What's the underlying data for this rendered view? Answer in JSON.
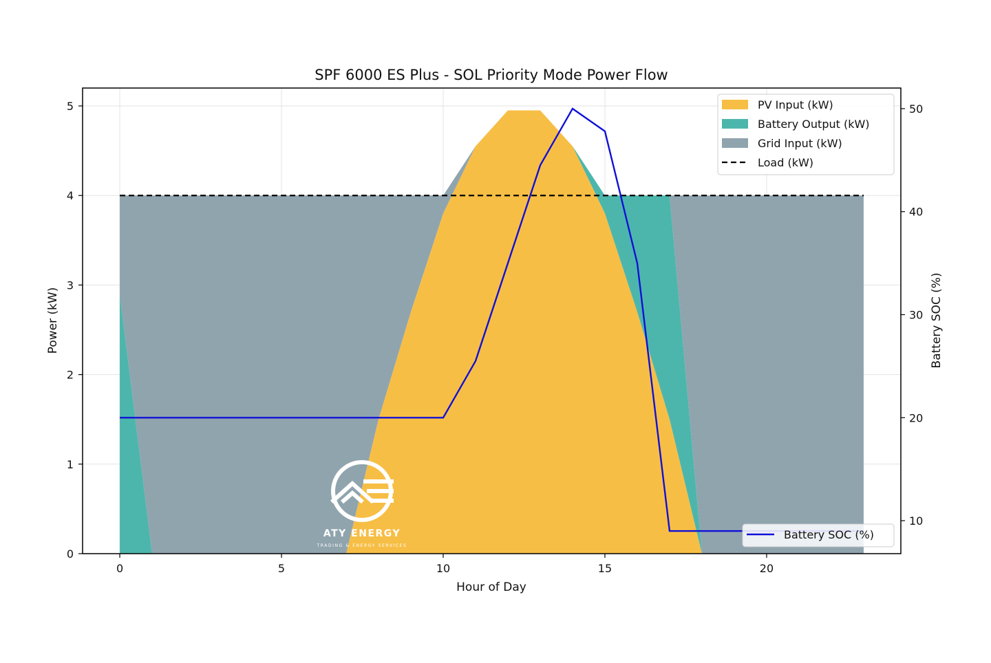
{
  "chart_data": {
    "type": "area",
    "title": "SPF 6000 ES Plus - SOL Priority Mode Power Flow",
    "xlabel": "Hour of Day",
    "ylabel": "Power (kW)",
    "y2label": "Battery SOC (%)",
    "xlim": [
      -1.15,
      24.15
    ],
    "ylim": [
      0,
      5.2
    ],
    "y2lim": [
      6.8,
      52.0
    ],
    "xticks": [
      0,
      5,
      10,
      15,
      20
    ],
    "yticks": [
      0,
      1,
      2,
      3,
      4,
      5
    ],
    "y2ticks": [
      10,
      20,
      30,
      40,
      50
    ],
    "grid": true,
    "legend_placement": "top-right",
    "legend2_placement": "bottom-right",
    "x": [
      0,
      1,
      2,
      3,
      4,
      5,
      6,
      7,
      8,
      9,
      10,
      11,
      12,
      13,
      14,
      15,
      16,
      17,
      18,
      19,
      20,
      21,
      22,
      23
    ],
    "series": [
      {
        "name": "PV Input (kW)",
        "kind": "stacked_area",
        "color": "#F7BE45",
        "values": [
          0,
          0,
          0,
          0,
          0,
          0,
          0,
          0,
          1.5,
          2.7,
          3.8,
          4.55,
          4.95,
          4.95,
          4.55,
          3.8,
          2.7,
          1.5,
          0,
          0,
          0,
          0,
          0,
          0
        ]
      },
      {
        "name": "Battery Output (kW)",
        "kind": "stacked_area",
        "color": "#4DB6AC",
        "values": [
          2.9,
          0,
          0,
          0,
          0,
          0,
          0,
          0,
          0,
          0,
          0,
          0,
          0,
          0,
          0,
          0.2,
          1.3,
          2.5,
          0,
          0,
          0,
          0,
          0,
          0
        ]
      },
      {
        "name": "Grid Input (kW)",
        "kind": "stacked_area",
        "color": "#90A4AE",
        "values": [
          1.1,
          4,
          4,
          4,
          4,
          4,
          4,
          4,
          2.5,
          1.3,
          0.2,
          0,
          0,
          0,
          0,
          0,
          0,
          0,
          4,
          4,
          4,
          4,
          4,
          4
        ]
      },
      {
        "name": "Load (kW)",
        "kind": "line",
        "style": "dashed",
        "color": "#000000",
        "values": [
          4,
          4,
          4,
          4,
          4,
          4,
          4,
          4,
          4,
          4,
          4,
          4,
          4,
          4,
          4,
          4,
          4,
          4,
          4,
          4,
          4,
          4,
          4,
          4
        ]
      },
      {
        "name": "Battery SOC (%)",
        "kind": "line",
        "axis": "right",
        "color": "#1010D8",
        "values": [
          20,
          20,
          20,
          20,
          20,
          20,
          20,
          20,
          20,
          20,
          20,
          25.5,
          35,
          44.5,
          50,
          47.8,
          35,
          9,
          9,
          9,
          9,
          9,
          9,
          9
        ]
      }
    ]
  },
  "logo": {
    "name": "ATY ENERGY",
    "tagline": "TRADING & ENERGY SERVICES"
  }
}
